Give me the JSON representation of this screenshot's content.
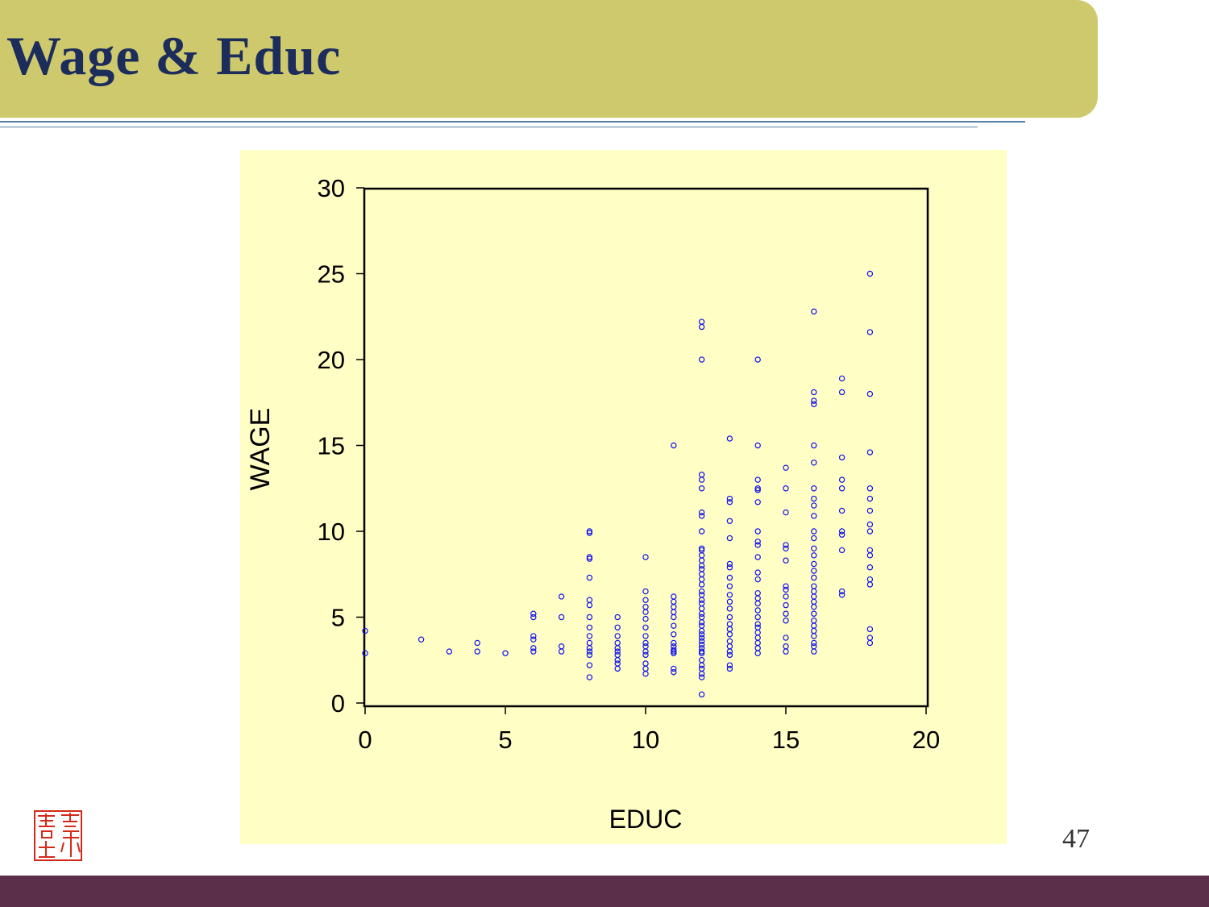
{
  "slide": {
    "title": "Wage & Educ",
    "page_number": "47"
  },
  "colors": {
    "title_band": "#cfc96e",
    "title_text": "#1c2d5c",
    "chart_background": "#fffec4",
    "marker": "#1010ee",
    "bottom_bar": "#5b2e4a",
    "seal": "#d42a1a"
  },
  "seal": {
    "icon": "red-seal-stamp"
  },
  "chart_data": {
    "type": "scatter",
    "title": "",
    "xlabel": "EDUC",
    "ylabel": "WAGE",
    "xlim": [
      0,
      20
    ],
    "ylim": [
      0,
      30
    ],
    "xticks": [
      0,
      5,
      10,
      15,
      20
    ],
    "yticks": [
      0,
      5,
      10,
      15,
      20,
      25,
      30
    ],
    "grid": false,
    "marker": "hollow-circle",
    "points": [
      [
        0,
        2.9
      ],
      [
        0,
        4.2
      ],
      [
        2,
        3.7
      ],
      [
        3,
        3.0
      ],
      [
        4,
        3.0
      ],
      [
        4,
        3.5
      ],
      [
        5,
        2.9
      ],
      [
        6,
        3.0
      ],
      [
        6,
        3.2
      ],
      [
        6,
        3.7
      ],
      [
        6,
        3.9
      ],
      [
        6,
        5.0
      ],
      [
        6,
        5.2
      ],
      [
        7,
        3.0
      ],
      [
        7,
        3.3
      ],
      [
        7,
        5.0
      ],
      [
        7,
        6.2
      ],
      [
        8,
        1.5
      ],
      [
        8,
        2.2
      ],
      [
        8,
        2.8
      ],
      [
        8,
        3.0
      ],
      [
        8,
        3.2
      ],
      [
        8,
        3.5
      ],
      [
        8,
        3.9
      ],
      [
        8,
        4.4
      ],
      [
        8,
        5.0
      ],
      [
        8,
        5.7
      ],
      [
        8,
        6.0
      ],
      [
        8,
        7.3
      ],
      [
        8,
        8.4
      ],
      [
        8,
        8.5
      ],
      [
        8,
        9.9
      ],
      [
        8,
        10.0
      ],
      [
        9,
        2.0
      ],
      [
        9,
        2.3
      ],
      [
        9,
        2.5
      ],
      [
        9,
        2.8
      ],
      [
        9,
        3.0
      ],
      [
        9,
        3.2
      ],
      [
        9,
        3.5
      ],
      [
        9,
        3.9
      ],
      [
        9,
        4.4
      ],
      [
        9,
        5.0
      ],
      [
        10,
        1.7
      ],
      [
        10,
        2.0
      ],
      [
        10,
        2.3
      ],
      [
        10,
        2.8
      ],
      [
        10,
        3.0
      ],
      [
        10,
        3.3
      ],
      [
        10,
        3.5
      ],
      [
        10,
        3.9
      ],
      [
        10,
        4.4
      ],
      [
        10,
        4.9
      ],
      [
        10,
        5.3
      ],
      [
        10,
        5.6
      ],
      [
        10,
        6.0
      ],
      [
        10,
        6.5
      ],
      [
        10,
        8.5
      ],
      [
        11,
        1.8
      ],
      [
        11,
        2.0
      ],
      [
        11,
        2.9
      ],
      [
        11,
        3.0
      ],
      [
        11,
        3.1
      ],
      [
        11,
        3.3
      ],
      [
        11,
        3.5
      ],
      [
        11,
        4.0
      ],
      [
        11,
        4.5
      ],
      [
        11,
        5.0
      ],
      [
        11,
        5.3
      ],
      [
        11,
        5.6
      ],
      [
        11,
        5.9
      ],
      [
        11,
        6.2
      ],
      [
        11,
        15.0
      ],
      [
        12,
        0.5
      ],
      [
        12,
        1.5
      ],
      [
        12,
        1.7
      ],
      [
        12,
        2.0
      ],
      [
        12,
        2.2
      ],
      [
        12,
        2.5
      ],
      [
        12,
        2.9
      ],
      [
        12,
        3.0
      ],
      [
        12,
        3.2
      ],
      [
        12,
        3.4
      ],
      [
        12,
        3.6
      ],
      [
        12,
        3.8
      ],
      [
        12,
        4.0
      ],
      [
        12,
        4.2
      ],
      [
        12,
        4.5
      ],
      [
        12,
        4.7
      ],
      [
        12,
        5.0
      ],
      [
        12,
        5.2
      ],
      [
        12,
        5.5
      ],
      [
        12,
        5.8
      ],
      [
        12,
        6.0
      ],
      [
        12,
        6.3
      ],
      [
        12,
        6.5
      ],
      [
        12,
        6.9
      ],
      [
        12,
        7.2
      ],
      [
        12,
        7.5
      ],
      [
        12,
        7.8
      ],
      [
        12,
        8.0
      ],
      [
        12,
        8.3
      ],
      [
        12,
        8.6
      ],
      [
        12,
        8.9
      ],
      [
        12,
        9.0
      ],
      [
        12,
        10.0
      ],
      [
        12,
        10.9
      ],
      [
        12,
        11.1
      ],
      [
        12,
        12.5
      ],
      [
        12,
        13.0
      ],
      [
        12,
        13.3
      ],
      [
        12,
        20.0
      ],
      [
        12,
        21.9
      ],
      [
        12,
        22.2
      ],
      [
        13,
        2.0
      ],
      [
        13,
        2.2
      ],
      [
        13,
        2.8
      ],
      [
        13,
        3.0
      ],
      [
        13,
        3.3
      ],
      [
        13,
        3.6
      ],
      [
        13,
        4.0
      ],
      [
        13,
        4.3
      ],
      [
        13,
        4.6
      ],
      [
        13,
        5.0
      ],
      [
        13,
        5.5
      ],
      [
        13,
        5.9
      ],
      [
        13,
        6.3
      ],
      [
        13,
        6.8
      ],
      [
        13,
        7.3
      ],
      [
        13,
        7.9
      ],
      [
        13,
        8.1
      ],
      [
        13,
        9.6
      ],
      [
        13,
        10.6
      ],
      [
        13,
        11.7
      ],
      [
        13,
        11.9
      ],
      [
        13,
        15.4
      ],
      [
        14,
        2.9
      ],
      [
        14,
        3.2
      ],
      [
        14,
        3.5
      ],
      [
        14,
        3.8
      ],
      [
        14,
        4.1
      ],
      [
        14,
        4.4
      ],
      [
        14,
        4.6
      ],
      [
        14,
        5.0
      ],
      [
        14,
        5.4
      ],
      [
        14,
        5.8
      ],
      [
        14,
        6.1
      ],
      [
        14,
        6.4
      ],
      [
        14,
        7.2
      ],
      [
        14,
        7.6
      ],
      [
        14,
        8.5
      ],
      [
        14,
        9.2
      ],
      [
        14,
        9.4
      ],
      [
        14,
        10.0
      ],
      [
        14,
        11.7
      ],
      [
        14,
        12.4
      ],
      [
        14,
        12.5
      ],
      [
        14,
        13.0
      ],
      [
        14,
        15.0
      ],
      [
        14,
        20.0
      ],
      [
        15,
        3.0
      ],
      [
        15,
        3.3
      ],
      [
        15,
        3.8
      ],
      [
        15,
        4.8
      ],
      [
        15,
        5.2
      ],
      [
        15,
        5.7
      ],
      [
        15,
        6.2
      ],
      [
        15,
        6.6
      ],
      [
        15,
        6.8
      ],
      [
        15,
        8.3
      ],
      [
        15,
        9.0
      ],
      [
        15,
        9.2
      ],
      [
        15,
        11.1
      ],
      [
        15,
        12.5
      ],
      [
        15,
        13.7
      ],
      [
        16,
        3.0
      ],
      [
        16,
        3.3
      ],
      [
        16,
        3.5
      ],
      [
        16,
        3.9
      ],
      [
        16,
        4.2
      ],
      [
        16,
        4.5
      ],
      [
        16,
        4.8
      ],
      [
        16,
        5.2
      ],
      [
        16,
        5.6
      ],
      [
        16,
        5.9
      ],
      [
        16,
        6.2
      ],
      [
        16,
        6.5
      ],
      [
        16,
        6.8
      ],
      [
        16,
        7.3
      ],
      [
        16,
        7.7
      ],
      [
        16,
        8.1
      ],
      [
        16,
        8.6
      ],
      [
        16,
        9.0
      ],
      [
        16,
        9.6
      ],
      [
        16,
        10.0
      ],
      [
        16,
        10.9
      ],
      [
        16,
        11.5
      ],
      [
        16,
        11.9
      ],
      [
        16,
        12.5
      ],
      [
        16,
        14.0
      ],
      [
        16,
        15.0
      ],
      [
        16,
        17.4
      ],
      [
        16,
        17.6
      ],
      [
        16,
        18.1
      ],
      [
        16,
        22.8
      ],
      [
        17,
        6.3
      ],
      [
        17,
        6.5
      ],
      [
        17,
        8.9
      ],
      [
        17,
        9.8
      ],
      [
        17,
        10.0
      ],
      [
        17,
        11.2
      ],
      [
        17,
        12.5
      ],
      [
        17,
        13.0
      ],
      [
        17,
        14.3
      ],
      [
        17,
        18.1
      ],
      [
        17,
        18.9
      ],
      [
        18,
        3.5
      ],
      [
        18,
        3.8
      ],
      [
        18,
        4.3
      ],
      [
        18,
        6.9
      ],
      [
        18,
        7.2
      ],
      [
        18,
        7.9
      ],
      [
        18,
        8.6
      ],
      [
        18,
        8.9
      ],
      [
        18,
        10.0
      ],
      [
        18,
        10.4
      ],
      [
        18,
        11.2
      ],
      [
        18,
        11.9
      ],
      [
        18,
        12.5
      ],
      [
        18,
        14.6
      ],
      [
        18,
        18.0
      ],
      [
        18,
        21.6
      ],
      [
        18,
        25.0
      ]
    ]
  }
}
